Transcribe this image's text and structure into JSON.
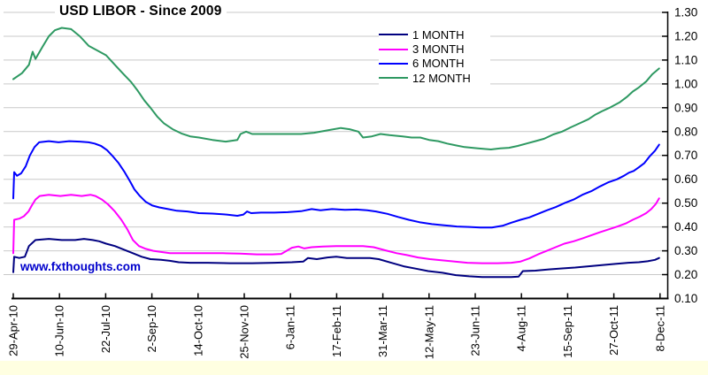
{
  "chart_data": {
    "type": "line",
    "title": "USD LIBOR - Since 2009",
    "watermark": "www.fxthoughts.com",
    "watermark_color": "#0000CC",
    "xlabel": "",
    "ylabel": "",
    "ylim": [
      0.1,
      1.3
    ],
    "grid": true,
    "gridline_color": "#C9C9C9",
    "axis_color": "#000000",
    "axis_side": "right",
    "legend_position": "top-center",
    "x_tick_labels": [
      "29-Apr-10",
      "10-Jun-10",
      "22-Jul-10",
      "2-Sep-10",
      "14-Oct-10",
      "25-Nov-10",
      "6-Jan-11",
      "17-Feb-11",
      "31-Mar-11",
      "12-May-11",
      "23-Jun-11",
      "4-Aug-11",
      "15-Sep-11",
      "27-Oct-11",
      "8-Dec-11"
    ],
    "y_tick_labels": [
      "1.30",
      "1.20",
      "1.10",
      "1.00",
      "0.90",
      "0.80",
      "0.70",
      "0.60",
      "0.50",
      "0.40",
      "0.30",
      "0.20",
      "0.10"
    ],
    "series": [
      {
        "name": "1 MONTH",
        "color": "#000080",
        "points": [
          [
            0,
            0.21
          ],
          [
            0.02,
            0.275
          ],
          [
            0.13,
            0.27
          ],
          [
            0.25,
            0.275
          ],
          [
            0.34,
            0.32
          ],
          [
            0.48,
            0.345
          ],
          [
            0.77,
            0.35
          ],
          [
            1.05,
            0.345
          ],
          [
            1.34,
            0.345
          ],
          [
            1.53,
            0.35
          ],
          [
            1.72,
            0.345
          ],
          [
            1.86,
            0.34
          ],
          [
            2.01,
            0.33
          ],
          [
            2.2,
            0.32
          ],
          [
            2.39,
            0.305
          ],
          [
            2.59,
            0.29
          ],
          [
            2.78,
            0.275
          ],
          [
            2.97,
            0.265
          ],
          [
            3.2,
            0.262
          ],
          [
            3.39,
            0.258
          ],
          [
            3.58,
            0.252
          ],
          [
            3.83,
            0.25
          ],
          [
            4.21,
            0.25
          ],
          [
            4.69,
            0.248
          ],
          [
            5.17,
            0.248
          ],
          [
            5.65,
            0.25
          ],
          [
            6.03,
            0.252
          ],
          [
            6.28,
            0.255
          ],
          [
            6.38,
            0.27
          ],
          [
            6.57,
            0.265
          ],
          [
            6.8,
            0.272
          ],
          [
            6.99,
            0.275
          ],
          [
            7.22,
            0.27
          ],
          [
            7.47,
            0.27
          ],
          [
            7.72,
            0.27
          ],
          [
            7.91,
            0.265
          ],
          [
            8.18,
            0.25
          ],
          [
            8.45,
            0.235
          ],
          [
            8.72,
            0.225
          ],
          [
            8.98,
            0.215
          ],
          [
            9.29,
            0.208
          ],
          [
            9.58,
            0.198
          ],
          [
            9.87,
            0.193
          ],
          [
            10.15,
            0.19
          ],
          [
            10.48,
            0.19
          ],
          [
            10.78,
            0.19
          ],
          [
            10.94,
            0.192
          ],
          [
            11.03,
            0.215
          ],
          [
            11.3,
            0.217
          ],
          [
            11.59,
            0.222
          ],
          [
            11.88,
            0.226
          ],
          [
            12.16,
            0.23
          ],
          [
            12.45,
            0.235
          ],
          [
            12.74,
            0.24
          ],
          [
            13.03,
            0.245
          ],
          [
            13.31,
            0.25
          ],
          [
            13.54,
            0.252
          ],
          [
            13.73,
            0.256
          ],
          [
            13.89,
            0.262
          ],
          [
            13.98,
            0.27
          ]
        ]
      },
      {
        "name": "3 MONTH",
        "color": "#FF00FF",
        "points": [
          [
            0,
            0.29
          ],
          [
            0.02,
            0.43
          ],
          [
            0.13,
            0.435
          ],
          [
            0.23,
            0.445
          ],
          [
            0.33,
            0.465
          ],
          [
            0.4,
            0.49
          ],
          [
            0.48,
            0.515
          ],
          [
            0.57,
            0.53
          ],
          [
            0.77,
            0.535
          ],
          [
            1.02,
            0.53
          ],
          [
            1.25,
            0.535
          ],
          [
            1.48,
            0.53
          ],
          [
            1.67,
            0.535
          ],
          [
            1.78,
            0.53
          ],
          [
            1.92,
            0.515
          ],
          [
            2.05,
            0.495
          ],
          [
            2.2,
            0.465
          ],
          [
            2.34,
            0.43
          ],
          [
            2.47,
            0.39
          ],
          [
            2.59,
            0.345
          ],
          [
            2.72,
            0.32
          ],
          [
            2.87,
            0.308
          ],
          [
            3.03,
            0.3
          ],
          [
            3.2,
            0.295
          ],
          [
            3.39,
            0.29
          ],
          [
            3.74,
            0.29
          ],
          [
            4.12,
            0.29
          ],
          [
            4.54,
            0.29
          ],
          [
            4.92,
            0.288
          ],
          [
            5.27,
            0.285
          ],
          [
            5.61,
            0.285
          ],
          [
            5.8,
            0.287
          ],
          [
            6.03,
            0.313
          ],
          [
            6.17,
            0.318
          ],
          [
            6.3,
            0.31
          ],
          [
            6.46,
            0.315
          ],
          [
            6.7,
            0.318
          ],
          [
            6.99,
            0.32
          ],
          [
            7.28,
            0.32
          ],
          [
            7.57,
            0.32
          ],
          [
            7.8,
            0.315
          ],
          [
            8.05,
            0.302
          ],
          [
            8.3,
            0.29
          ],
          [
            8.52,
            0.282
          ],
          [
            8.76,
            0.272
          ],
          [
            9.02,
            0.265
          ],
          [
            9.29,
            0.26
          ],
          [
            9.56,
            0.255
          ],
          [
            9.83,
            0.25
          ],
          [
            10.15,
            0.248
          ],
          [
            10.48,
            0.248
          ],
          [
            10.78,
            0.25
          ],
          [
            10.98,
            0.255
          ],
          [
            11.17,
            0.268
          ],
          [
            11.36,
            0.285
          ],
          [
            11.55,
            0.3
          ],
          [
            11.74,
            0.315
          ],
          [
            11.93,
            0.33
          ],
          [
            12.13,
            0.34
          ],
          [
            12.32,
            0.352
          ],
          [
            12.51,
            0.365
          ],
          [
            12.7,
            0.378
          ],
          [
            12.89,
            0.39
          ],
          [
            13.08,
            0.402
          ],
          [
            13.26,
            0.415
          ],
          [
            13.41,
            0.43
          ],
          [
            13.56,
            0.443
          ],
          [
            13.7,
            0.458
          ],
          [
            13.81,
            0.475
          ],
          [
            13.91,
            0.497
          ],
          [
            13.98,
            0.52
          ]
        ]
      },
      {
        "name": "6 MONTH",
        "color": "#0000FF",
        "points": [
          [
            0,
            0.52
          ],
          [
            0.02,
            0.63
          ],
          [
            0.08,
            0.615
          ],
          [
            0.17,
            0.625
          ],
          [
            0.27,
            0.655
          ],
          [
            0.36,
            0.7
          ],
          [
            0.46,
            0.735
          ],
          [
            0.56,
            0.755
          ],
          [
            0.77,
            0.76
          ],
          [
            0.98,
            0.755
          ],
          [
            1.21,
            0.76
          ],
          [
            1.44,
            0.758
          ],
          [
            1.63,
            0.755
          ],
          [
            1.76,
            0.75
          ],
          [
            1.9,
            0.74
          ],
          [
            2.03,
            0.722
          ],
          [
            2.16,
            0.695
          ],
          [
            2.28,
            0.668
          ],
          [
            2.41,
            0.63
          ],
          [
            2.53,
            0.59
          ],
          [
            2.62,
            0.558
          ],
          [
            2.74,
            0.53
          ],
          [
            2.87,
            0.505
          ],
          [
            3.01,
            0.49
          ],
          [
            3.16,
            0.482
          ],
          [
            3.35,
            0.475
          ],
          [
            3.54,
            0.468
          ],
          [
            3.77,
            0.465
          ],
          [
            4.02,
            0.458
          ],
          [
            4.31,
            0.456
          ],
          [
            4.62,
            0.452
          ],
          [
            4.85,
            0.447
          ],
          [
            4.98,
            0.452
          ],
          [
            5.06,
            0.465
          ],
          [
            5.15,
            0.458
          ],
          [
            5.36,
            0.46
          ],
          [
            5.65,
            0.46
          ],
          [
            5.94,
            0.462
          ],
          [
            6.23,
            0.466
          ],
          [
            6.46,
            0.475
          ],
          [
            6.65,
            0.47
          ],
          [
            6.9,
            0.475
          ],
          [
            7.18,
            0.472
          ],
          [
            7.43,
            0.473
          ],
          [
            7.66,
            0.47
          ],
          [
            7.85,
            0.465
          ],
          [
            8.1,
            0.455
          ],
          [
            8.33,
            0.442
          ],
          [
            8.56,
            0.43
          ],
          [
            8.79,
            0.42
          ],
          [
            9.06,
            0.412
          ],
          [
            9.33,
            0.407
          ],
          [
            9.6,
            0.402
          ],
          [
            9.87,
            0.4
          ],
          [
            10.11,
            0.398
          ],
          [
            10.36,
            0.398
          ],
          [
            10.59,
            0.405
          ],
          [
            10.78,
            0.418
          ],
          [
            10.98,
            0.43
          ],
          [
            11.17,
            0.44
          ],
          [
            11.36,
            0.455
          ],
          [
            11.55,
            0.47
          ],
          [
            11.74,
            0.483
          ],
          [
            11.93,
            0.5
          ],
          [
            12.13,
            0.515
          ],
          [
            12.32,
            0.535
          ],
          [
            12.51,
            0.55
          ],
          [
            12.7,
            0.57
          ],
          [
            12.89,
            0.588
          ],
          [
            13.07,
            0.6
          ],
          [
            13.22,
            0.615
          ],
          [
            13.33,
            0.628
          ],
          [
            13.43,
            0.635
          ],
          [
            13.54,
            0.65
          ],
          [
            13.66,
            0.668
          ],
          [
            13.77,
            0.695
          ],
          [
            13.89,
            0.72
          ],
          [
            13.98,
            0.745
          ]
        ]
      },
      {
        "name": "12 MONTH",
        "color": "#2E9962",
        "points": [
          [
            0,
            1.02
          ],
          [
            0.19,
            1.045
          ],
          [
            0.34,
            1.08
          ],
          [
            0.42,
            1.135
          ],
          [
            0.48,
            1.105
          ],
          [
            0.63,
            1.155
          ],
          [
            0.77,
            1.2
          ],
          [
            0.9,
            1.225
          ],
          [
            1.05,
            1.235
          ],
          [
            1.25,
            1.23
          ],
          [
            1.44,
            1.2
          ],
          [
            1.63,
            1.16
          ],
          [
            1.82,
            1.14
          ],
          [
            2.01,
            1.12
          ],
          [
            2.2,
            1.08
          ],
          [
            2.39,
            1.04
          ],
          [
            2.55,
            1.008
          ],
          [
            2.68,
            0.975
          ],
          [
            2.84,
            0.93
          ],
          [
            2.97,
            0.9
          ],
          [
            3.12,
            0.862
          ],
          [
            3.26,
            0.835
          ],
          [
            3.45,
            0.81
          ],
          [
            3.64,
            0.792
          ],
          [
            3.83,
            0.78
          ],
          [
            4.02,
            0.775
          ],
          [
            4.31,
            0.765
          ],
          [
            4.6,
            0.758
          ],
          [
            4.85,
            0.765
          ],
          [
            4.92,
            0.79
          ],
          [
            5.04,
            0.8
          ],
          [
            5.17,
            0.79
          ],
          [
            5.46,
            0.79
          ],
          [
            5.84,
            0.79
          ],
          [
            6.23,
            0.79
          ],
          [
            6.51,
            0.795
          ],
          [
            6.8,
            0.805
          ],
          [
            7.09,
            0.815
          ],
          [
            7.28,
            0.81
          ],
          [
            7.47,
            0.8
          ],
          [
            7.57,
            0.775
          ],
          [
            7.76,
            0.78
          ],
          [
            7.95,
            0.79
          ],
          [
            8.14,
            0.785
          ],
          [
            8.43,
            0.78
          ],
          [
            8.62,
            0.775
          ],
          [
            8.81,
            0.775
          ],
          [
            9,
            0.765
          ],
          [
            9.2,
            0.76
          ],
          [
            9.39,
            0.75
          ],
          [
            9.58,
            0.742
          ],
          [
            9.77,
            0.735
          ],
          [
            10.06,
            0.73
          ],
          [
            10.34,
            0.725
          ],
          [
            10.54,
            0.73
          ],
          [
            10.73,
            0.732
          ],
          [
            10.92,
            0.74
          ],
          [
            11.11,
            0.75
          ],
          [
            11.3,
            0.76
          ],
          [
            11.49,
            0.77
          ],
          [
            11.69,
            0.788
          ],
          [
            11.88,
            0.8
          ],
          [
            12.07,
            0.818
          ],
          [
            12.26,
            0.835
          ],
          [
            12.45,
            0.852
          ],
          [
            12.59,
            0.87
          ],
          [
            12.74,
            0.885
          ],
          [
            12.93,
            0.902
          ],
          [
            13.12,
            0.922
          ],
          [
            13.28,
            0.945
          ],
          [
            13.41,
            0.968
          ],
          [
            13.54,
            0.985
          ],
          [
            13.7,
            1.01
          ],
          [
            13.83,
            1.04
          ],
          [
            13.98,
            1.065
          ]
        ]
      }
    ]
  }
}
